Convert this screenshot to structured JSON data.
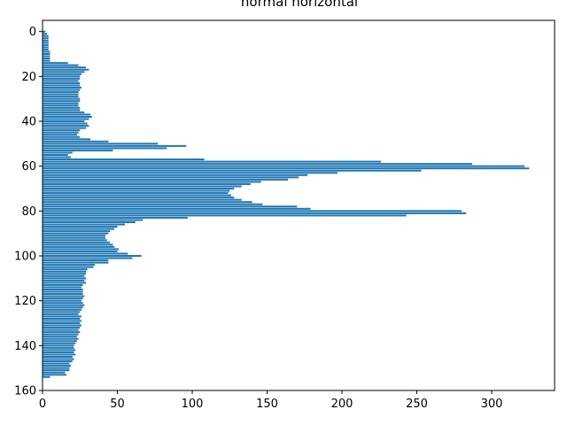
{
  "chart_data": {
    "type": "bar",
    "orientation": "horizontal",
    "title": "normal horizontal",
    "xlabel": "",
    "ylabel": "",
    "xlim": [
      0,
      342
    ],
    "ylim": [
      160,
      -5
    ],
    "y_inverted": true,
    "grid": false,
    "legend": "none",
    "bar_color": "#1f77b4",
    "xticks": [
      "0",
      "50",
      "100",
      "150",
      "200",
      "250",
      "300"
    ],
    "yticks": [
      "0",
      "20",
      "40",
      "60",
      "80",
      "100",
      "120",
      "140",
      "160"
    ],
    "y": [
      0,
      1,
      2,
      3,
      4,
      5,
      6,
      7,
      8,
      9,
      10,
      11,
      12,
      13,
      14,
      15,
      16,
      17,
      18,
      19,
      20,
      21,
      22,
      23,
      24,
      25,
      26,
      27,
      28,
      29,
      30,
      31,
      32,
      33,
      34,
      35,
      36,
      37,
      38,
      39,
      40,
      41,
      42,
      43,
      44,
      45,
      46,
      47,
      48,
      49,
      50,
      51,
      52,
      53,
      54,
      55,
      56,
      57,
      58,
      59,
      60,
      61,
      62,
      63,
      64,
      65,
      66,
      67,
      68,
      69,
      70,
      71,
      72,
      73,
      74,
      75,
      76,
      77,
      78,
      79,
      80,
      81,
      82,
      83,
      84,
      85,
      86,
      87,
      88,
      89,
      90,
      91,
      92,
      93,
      94,
      95,
      96,
      97,
      98,
      99,
      100,
      101,
      102,
      103,
      104,
      105,
      106,
      107,
      108,
      109,
      110,
      111,
      112,
      113,
      114,
      115,
      116,
      117,
      118,
      119,
      120,
      121,
      122,
      123,
      124,
      125,
      126,
      127,
      128,
      129,
      130,
      131,
      132,
      133,
      134,
      135,
      136,
      137,
      138,
      139,
      140,
      141,
      142,
      143,
      144,
      145,
      146,
      147,
      148,
      149,
      150,
      151,
      152,
      153,
      154
    ],
    "values": [
      2,
      3,
      4,
      4,
      4,
      4,
      4,
      4,
      4,
      5,
      5,
      5,
      5,
      5,
      17,
      24,
      29,
      31,
      28,
      26,
      25,
      25,
      24,
      25,
      25,
      26,
      25,
      24,
      24,
      24,
      25,
      25,
      24,
      24,
      25,
      25,
      28,
      32,
      33,
      31,
      28,
      30,
      31,
      29,
      25,
      24,
      23,
      25,
      32,
      44,
      77,
      96,
      83,
      47,
      20,
      17,
      19,
      108,
      226,
      287,
      322,
      325,
      253,
      197,
      177,
      171,
      164,
      146,
      139,
      133,
      128,
      125,
      124,
      126,
      128,
      133,
      140,
      147,
      170,
      179,
      280,
      283,
      243,
      97,
      67,
      62,
      55,
      50,
      48,
      45,
      44,
      42,
      42,
      43,
      45,
      47,
      48,
      51,
      50,
      57,
      66,
      60,
      44,
      44,
      35,
      34,
      30,
      29,
      29,
      28,
      29,
      28,
      29,
      27,
      26,
      27,
      27,
      27,
      28,
      27,
      26,
      27,
      28,
      27,
      26,
      25,
      24,
      26,
      25,
      26,
      25,
      26,
      25,
      24,
      25,
      24,
      23,
      24,
      23,
      22,
      21,
      21,
      22,
      21,
      22,
      20,
      21,
      20,
      18,
      19,
      18,
      18,
      15,
      16,
      5
    ]
  }
}
